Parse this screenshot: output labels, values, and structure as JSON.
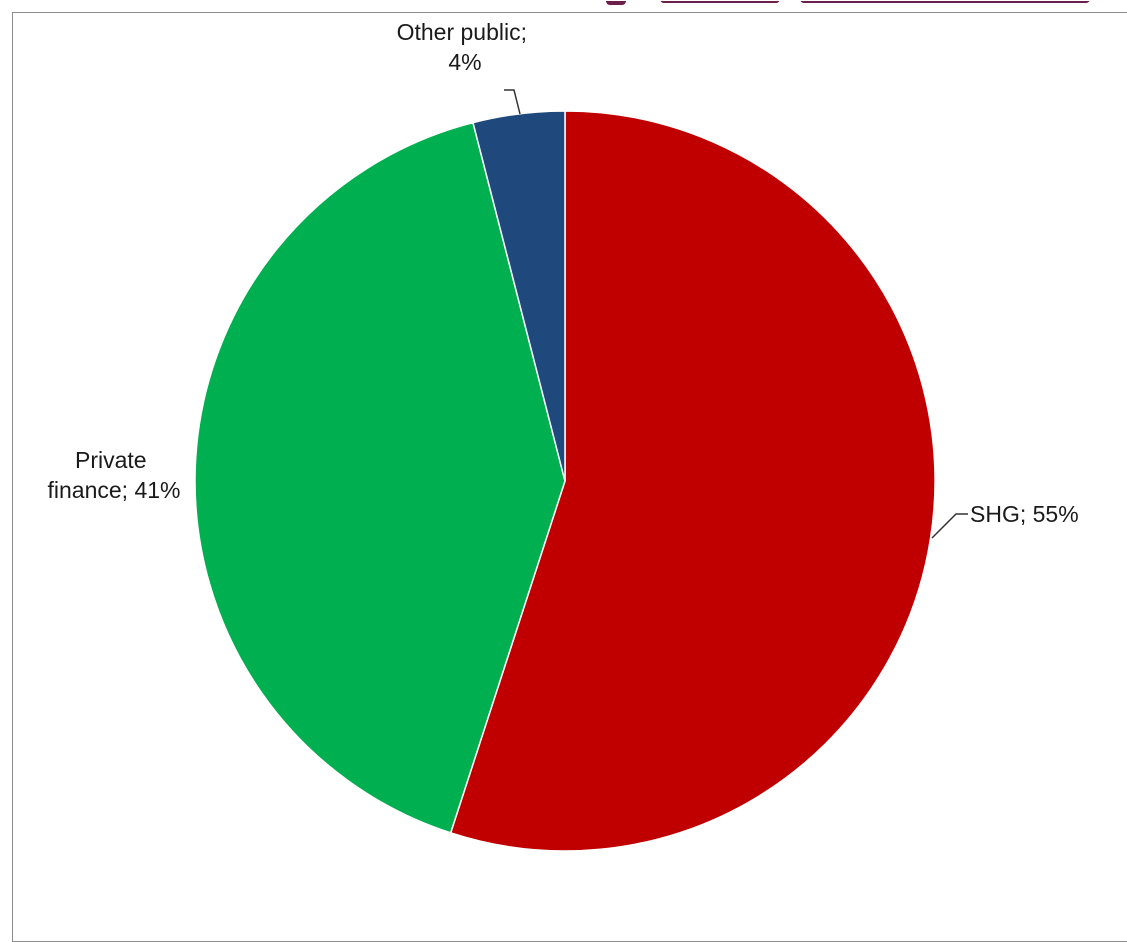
{
  "chart_data": {
    "type": "pie",
    "title": "",
    "slices": [
      {
        "name": "SHG",
        "value": 55,
        "color": "#c00000",
        "label_lines": [
          "SHG; 55%"
        ]
      },
      {
        "name": "Private finance",
        "value": 41,
        "color": "#00b050",
        "label_lines": [
          "Private",
          "finance; 41%"
        ]
      },
      {
        "name": "Other public",
        "value": 4,
        "color": "#1f497d",
        "label_lines": [
          "Other public;",
          "4%"
        ]
      }
    ],
    "start_angle_deg": 0,
    "direction": "clockwise",
    "slice_border_color": "#ffffff"
  },
  "background": {
    "header_color": "#6b1f4a"
  }
}
